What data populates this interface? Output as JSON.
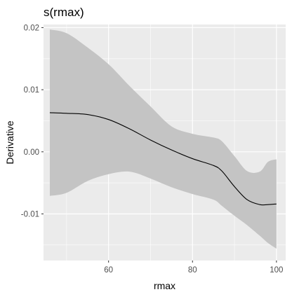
{
  "chart_data": {
    "type": "line",
    "title": "s(rmax)",
    "xlabel": "rmax",
    "ylabel": "Derivative",
    "xlim": [
      44.5,
      102.2
    ],
    "ylim": [
      -0.0175,
      0.0205
    ],
    "x_ticks": [
      60,
      80,
      100
    ],
    "x_tick_labels": [
      "60",
      "80",
      "100"
    ],
    "y_ticks": [
      -0.01,
      0.0,
      0.01,
      0.02
    ],
    "y_tick_labels": [
      "-0.01",
      "0.00",
      "0.01",
      "0.02"
    ],
    "grid": true,
    "colors": {
      "panel": "#ebebeb",
      "grid_major": "#ffffff",
      "band": "#c4c4c4",
      "line": "#000000"
    },
    "series": [
      {
        "x": [
          46,
          50,
          55,
          60,
          65,
          70,
          75,
          80,
          85,
          87,
          90,
          93,
          96,
          98,
          100
        ],
        "y": [
          0.0063,
          0.0062,
          0.006,
          0.0052,
          0.0037,
          0.0019,
          0.0003,
          -0.0011,
          -0.0022,
          -0.0031,
          -0.0056,
          -0.0077,
          -0.0085,
          -0.0085,
          -0.0084
        ],
        "lower": [
          -0.0071,
          -0.0066,
          -0.0047,
          -0.0036,
          -0.0032,
          -0.0043,
          -0.0057,
          -0.0068,
          -0.0077,
          -0.0087,
          -0.0103,
          -0.0118,
          -0.0135,
          -0.0147,
          -0.0156
        ],
        "upper": [
          0.0197,
          0.0191,
          0.0168,
          0.0141,
          0.0106,
          0.0073,
          0.0041,
          0.0029,
          0.0023,
          0.0017,
          -0.0007,
          -0.0031,
          -0.0032,
          -0.0016,
          -0.0012
        ]
      }
    ]
  }
}
